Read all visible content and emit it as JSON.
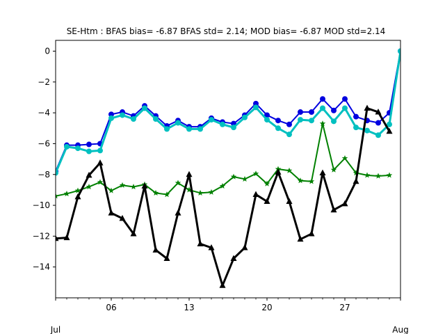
{
  "chart_data": {
    "type": "line",
    "title": "SE-Htm   : BFAS bias= -6.87 BFAS std= 2.14; MOD bias= -6.87 MOD std=2.14",
    "xlabel": "",
    "ylabel": "",
    "x_start_day": 1,
    "x_end_day": 32,
    "xlim": [
      1,
      32
    ],
    "ylim": [
      -16,
      0.7
    ],
    "xticks": [
      {
        "day": 6,
        "label": "06"
      },
      {
        "day": 13,
        "label": "13"
      },
      {
        "day": 20,
        "label": "20"
      },
      {
        "day": 27,
        "label": "27"
      }
    ],
    "xtick_minor_days": [
      1,
      2,
      3,
      4,
      5,
      7,
      8,
      9,
      10,
      11,
      12,
      14,
      15,
      16,
      17,
      18,
      19,
      21,
      22,
      23,
      24,
      25,
      26,
      28,
      29,
      30,
      31,
      32
    ],
    "month_labels": [
      {
        "day": 1,
        "label": "Jul"
      },
      {
        "day": 32,
        "label": "Aug"
      }
    ],
    "yticks": [
      0,
      -2,
      -4,
      -6,
      -8,
      -10,
      -12,
      -14
    ],
    "ytick_labels": [
      "0",
      "−2",
      "−4",
      "−6",
      "−8",
      "−10",
      "−12",
      "−14"
    ],
    "grid": false,
    "series": [
      {
        "color": "#0000e0",
        "marker": "circle",
        "width": 2,
        "x": [
          1,
          2,
          3,
          4,
          5,
          6,
          7,
          8,
          9,
          10,
          11,
          12,
          13,
          14,
          15,
          16,
          17,
          18,
          19,
          20,
          21,
          22,
          23,
          24,
          25,
          26,
          27,
          28,
          29,
          30,
          31,
          32
        ],
        "y": [
          -7.8,
          -6.1,
          -6.1,
          -6.05,
          -6.0,
          -4.1,
          -3.95,
          -4.2,
          -3.55,
          -4.2,
          -4.85,
          -4.5,
          -4.9,
          -4.9,
          -4.35,
          -4.6,
          -4.7,
          -4.15,
          -3.4,
          -4.15,
          -4.5,
          -4.75,
          -3.95,
          -3.95,
          -3.1,
          -3.85,
          -3.1,
          -4.25,
          -4.5,
          -4.65,
          -4.0,
          0.0
        ]
      },
      {
        "color": "#00c0c0",
        "marker": "circle",
        "width": 3,
        "x": [
          1,
          2,
          3,
          4,
          5,
          6,
          7,
          8,
          9,
          10,
          11,
          12,
          13,
          14,
          15,
          16,
          17,
          18,
          19,
          20,
          21,
          22,
          23,
          24,
          25,
          26,
          27,
          28,
          29,
          30,
          31,
          32
        ],
        "y": [
          -7.9,
          -6.2,
          -6.3,
          -6.5,
          -6.45,
          -4.35,
          -4.15,
          -4.4,
          -3.7,
          -4.4,
          -5.05,
          -4.65,
          -5.05,
          -5.05,
          -4.45,
          -4.75,
          -4.95,
          -4.3,
          -3.65,
          -4.45,
          -5.0,
          -5.4,
          -4.45,
          -4.5,
          -3.7,
          -4.55,
          -3.7,
          -4.95,
          -5.15,
          -5.45,
          -4.75,
          0.0
        ]
      },
      {
        "color": "#008000",
        "marker": "star",
        "width": 2,
        "x": [
          1,
          2,
          3,
          4,
          5,
          6,
          7,
          8,
          9,
          10,
          11,
          12,
          13,
          14,
          15,
          16,
          17,
          18,
          19,
          20,
          21,
          22,
          23,
          24,
          25,
          26,
          27,
          28,
          29,
          30,
          31
        ],
        "y": [
          -9.4,
          -9.25,
          -9.05,
          -8.8,
          -8.5,
          -9.05,
          -8.7,
          -8.8,
          -8.65,
          -9.2,
          -9.3,
          -8.55,
          -9.0,
          -9.2,
          -9.15,
          -8.75,
          -8.15,
          -8.3,
          -7.95,
          -8.6,
          -7.65,
          -7.75,
          -8.4,
          -8.45,
          -4.7,
          -7.7,
          -6.95,
          -7.9,
          -8.05,
          -8.1,
          -8.05
        ]
      },
      {
        "color": "#000000",
        "marker": "triangle",
        "width": 3,
        "x": [
          1,
          2,
          3,
          4,
          5,
          6,
          7,
          8,
          9,
          10,
          11,
          12,
          13,
          14,
          15,
          16,
          17,
          18,
          19,
          20,
          21,
          22,
          23,
          24,
          25,
          26,
          27,
          28,
          29,
          30,
          31
        ],
        "y": [
          -12.15,
          -12.1,
          -9.45,
          -8.05,
          -7.25,
          -10.5,
          -10.85,
          -11.85,
          -8.75,
          -12.9,
          -13.45,
          -10.5,
          -8.0,
          -12.5,
          -12.75,
          -15.2,
          -13.45,
          -12.75,
          -9.3,
          -9.75,
          -7.85,
          -9.75,
          -12.2,
          -11.85,
          -7.9,
          -10.3,
          -9.9,
          -8.45,
          -3.7,
          -3.95,
          -5.2
        ]
      }
    ]
  }
}
